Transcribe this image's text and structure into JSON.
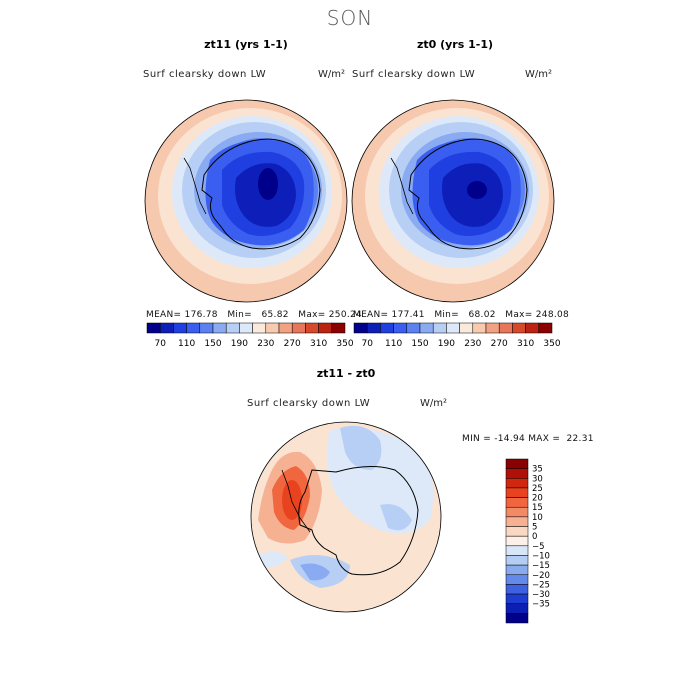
{
  "figure_title": "SON",
  "panels": [
    {
      "title": "zt11 (yrs 1-1)",
      "variable": "Surf clearsky down LW",
      "units": "W/m²",
      "stats": {
        "mean": "176.78",
        "min": "65.82",
        "max": "250.24"
      },
      "stats_text": "MEAN= 176.78   Min=   65.82   Max= 250.24"
    },
    {
      "title": "zt0 (yrs 1-1)",
      "variable": "Surf clearsky down LW",
      "units": "W/m²",
      "stats": {
        "mean": "177.41",
        "min": "68.02",
        "max": "248.08"
      },
      "stats_text": "MEAN= 177.41   Min=   68.02   Max= 248.08"
    },
    {
      "title": "zt11 - zt0",
      "variable": "Surf clearsky down LW",
      "units": "W/m²",
      "stats": {
        "min": "-14.94",
        "max": "22.31"
      },
      "stats_text": "MIN = -14.94 MAX =  22.31"
    }
  ],
  "top_colorbar": {
    "tick_labels": [
      "70",
      "110",
      "150",
      "190",
      "230",
      "270",
      "310",
      "350"
    ],
    "colors": [
      "#00008b",
      "#0d1fb8",
      "#1f3fe0",
      "#3a5ef0",
      "#5c82f2",
      "#8aaaf2",
      "#b8cff5",
      "#dde9f8",
      "#fbe9dc",
      "#f8cbb0",
      "#f2a283",
      "#e8765a",
      "#d64a2c",
      "#bb2412",
      "#8b0000"
    ]
  },
  "bottom_colorbar": {
    "tick_labels": [
      "35",
      "30",
      "25",
      "20",
      "15",
      "10",
      "5",
      "0",
      "−5",
      "−10",
      "−15",
      "−20",
      "−25",
      "−30",
      "−35"
    ],
    "colors": [
      "#8b0000",
      "#b01008",
      "#d12710",
      "#e8431e",
      "#f0663f",
      "#f38a66",
      "#f6b193",
      "#fad8c4",
      "#fdf0e6",
      "#d8e6f8",
      "#b4cdf4",
      "#8aacef",
      "#6489ea",
      "#3d61df",
      "#1f3cd0",
      "#0c1fb5",
      "#00008b"
    ]
  }
}
